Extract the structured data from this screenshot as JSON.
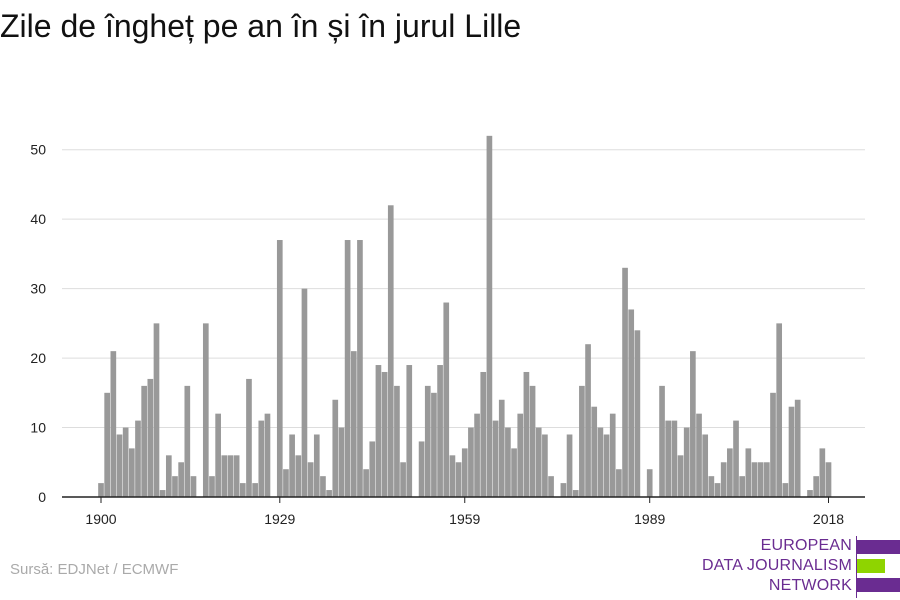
{
  "title": "Zile de îngheț pe an în și în jurul Lille",
  "source": "Sursă: EDJNet / ECMWF",
  "logo": {
    "lines": [
      "EUROPEAN",
      "DATA JOURNALISM",
      "NETWORK"
    ],
    "colors": [
      "#6a2c91",
      "#8fd400",
      "#6a2c91"
    ]
  },
  "chart_data": {
    "type": "bar",
    "x_start": 1900,
    "x_end": 2018,
    "x_ticks": [
      1900,
      1929,
      1959,
      1989,
      2018
    ],
    "y_ticks": [
      0,
      10,
      20,
      30,
      40,
      50
    ],
    "ylim": [
      0,
      55
    ],
    "grid": true,
    "bar_color": "#999999",
    "values": [
      2,
      15,
      21,
      9,
      10,
      7,
      11,
      16,
      17,
      25,
      1,
      6,
      3,
      5,
      16,
      3,
      0,
      25,
      3,
      12,
      6,
      6,
      6,
      2,
      17,
      2,
      11,
      12,
      0,
      37,
      4,
      9,
      6,
      30,
      5,
      9,
      3,
      1,
      14,
      10,
      37,
      21,
      37,
      4,
      8,
      19,
      18,
      42,
      16,
      5,
      19,
      0,
      8,
      16,
      15,
      19,
      28,
      6,
      5,
      7,
      10,
      12,
      18,
      52,
      11,
      14,
      10,
      7,
      12,
      18,
      16,
      10,
      9,
      3,
      0,
      2,
      9,
      1,
      16,
      22,
      13,
      10,
      9,
      12,
      4,
      33,
      27,
      24,
      0,
      4,
      0,
      16,
      11,
      11,
      6,
      10,
      21,
      12,
      9,
      3,
      2,
      5,
      7,
      11,
      3,
      7,
      5,
      5,
      5,
      15,
      25,
      2,
      13,
      14,
      0,
      1,
      3,
      7,
      5
    ]
  }
}
